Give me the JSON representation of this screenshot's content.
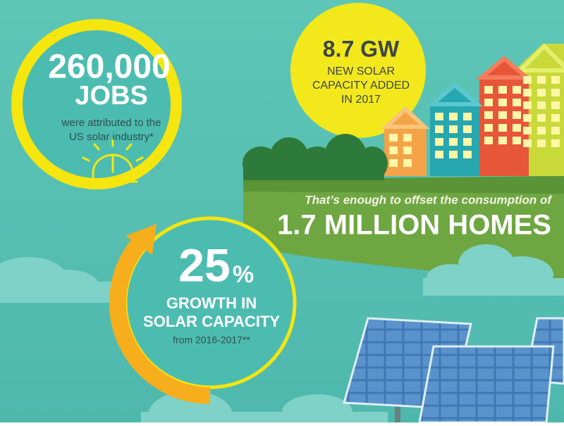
{
  "jobs": {
    "number": "260,000",
    "label": "JOBS",
    "lines": [
      "were attributed to the",
      "US solar industry*"
    ]
  },
  "capacity": {
    "number": "8.7 GW",
    "lines": [
      "NEW SOLAR",
      "CAPACITY ADDED",
      "IN 2017"
    ]
  },
  "homes": {
    "intro": "That’s enough to offset the consumption of",
    "headline": "1.7 MILLION HOMES"
  },
  "growth": {
    "number": "25",
    "unit": "%",
    "lines": [
      "GROWTH IN",
      "SOLAR CAPACITY"
    ],
    "note": "from 2016-2017**"
  }
}
